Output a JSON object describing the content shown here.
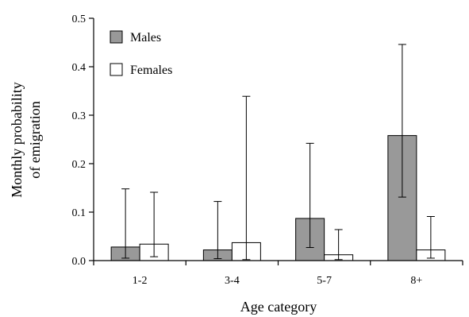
{
  "chart_data": {
    "type": "bar",
    "xlabel": "Age category",
    "ylabel": [
      "Monthly probability",
      "of emigration"
    ],
    "categories": [
      "1-2",
      "3-4",
      "5-7",
      "8+"
    ],
    "ylim": [
      0,
      0.5
    ],
    "yticks": [
      "0.0",
      "0.1",
      "0.2",
      "0.3",
      "0.4",
      "0.5"
    ],
    "legend_position": "top-left",
    "error_bars": true,
    "series": [
      {
        "name": "Males",
        "color": "#999999",
        "values": [
          0.028,
          0.022,
          0.087,
          0.258
        ],
        "lower": [
          0.005,
          0.004,
          0.027,
          0.131
        ],
        "upper": [
          0.148,
          0.122,
          0.242,
          0.446
        ]
      },
      {
        "name": "Females",
        "color": "#ffffff",
        "values": [
          0.034,
          0.037,
          0.012,
          0.022
        ],
        "lower": [
          0.008,
          0.002,
          0.002,
          0.005
        ],
        "upper": [
          0.141,
          0.339,
          0.064,
          0.091
        ]
      }
    ]
  }
}
